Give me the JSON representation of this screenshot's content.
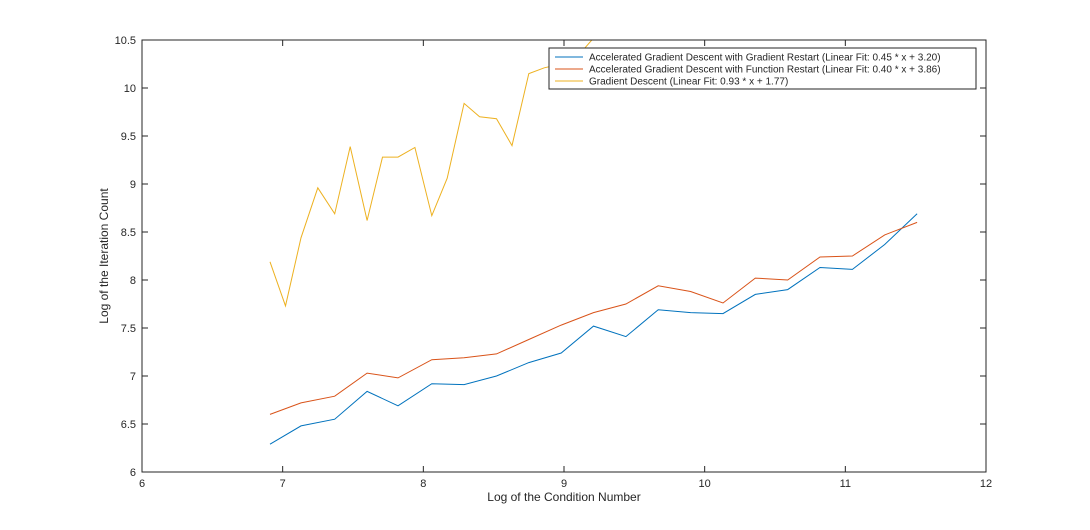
{
  "chart_data": {
    "type": "line",
    "title": "",
    "xlabel": "Log of the Condition Number",
    "ylabel": "Log of the Iteration Count",
    "xlim": [
      6,
      12
    ],
    "ylim": [
      6,
      10.5
    ],
    "xticks": [
      "6",
      "7",
      "8",
      "9",
      "10",
      "11",
      "12"
    ],
    "yticks": [
      "6",
      "6.5",
      "7",
      "7.5",
      "8",
      "8.5",
      "9",
      "9.5",
      "10",
      "10.5"
    ],
    "grid": false,
    "legend_position": "top-right",
    "series": [
      {
        "name": "Accelerated Gradient Descent with Gradient Restart (Linear Fit: 0.45 * x + 3.20)",
        "color": "#0072BD",
        "x": [
          6.91,
          7.13,
          7.37,
          7.6,
          7.82,
          8.06,
          8.29,
          8.52,
          8.75,
          8.98,
          9.21,
          9.44,
          9.67,
          9.9,
          10.13,
          10.36,
          10.59,
          10.82,
          11.05,
          11.28,
          11.51
        ],
        "y": [
          6.29,
          6.48,
          6.55,
          6.84,
          6.69,
          6.92,
          6.91,
          7.0,
          7.14,
          7.24,
          7.52,
          7.41,
          7.69,
          7.66,
          7.65,
          7.85,
          7.9,
          8.13,
          8.11,
          8.37,
          8.69
        ]
      },
      {
        "name": "Accelerated Gradient Descent with Function Restart (Linear Fit: 0.40 * x + 3.86)",
        "color": "#D95319",
        "x": [
          6.91,
          7.13,
          7.37,
          7.6,
          7.82,
          8.06,
          8.29,
          8.52,
          8.75,
          8.98,
          9.21,
          9.44,
          9.67,
          9.9,
          10.13,
          10.36,
          10.59,
          10.82,
          11.05,
          11.28,
          11.51
        ],
        "y": [
          6.6,
          6.72,
          6.79,
          7.03,
          6.98,
          7.17,
          7.19,
          7.23,
          7.38,
          7.53,
          7.66,
          7.75,
          7.94,
          7.88,
          7.76,
          8.02,
          8.0,
          8.24,
          8.25,
          8.47,
          8.6
        ]
      },
      {
        "name": "Gradient Descent (Linear Fit: 0.93 * x + 1.77)",
        "color": "#EDB120",
        "x": [
          6.91,
          7.02,
          7.13,
          7.25,
          7.37,
          7.48,
          7.6,
          7.71,
          7.82,
          7.94,
          8.06,
          8.17,
          8.29,
          8.4,
          8.52,
          8.63,
          8.75,
          8.86,
          8.98,
          9.09,
          9.21
        ],
        "y": [
          8.19,
          7.73,
          8.44,
          8.96,
          8.69,
          9.39,
          8.62,
          9.28,
          9.28,
          9.38,
          8.67,
          9.06,
          9.84,
          9.7,
          9.68,
          9.4,
          10.15,
          10.21,
          10.25,
          10.32,
          10.52
        ]
      }
    ]
  }
}
